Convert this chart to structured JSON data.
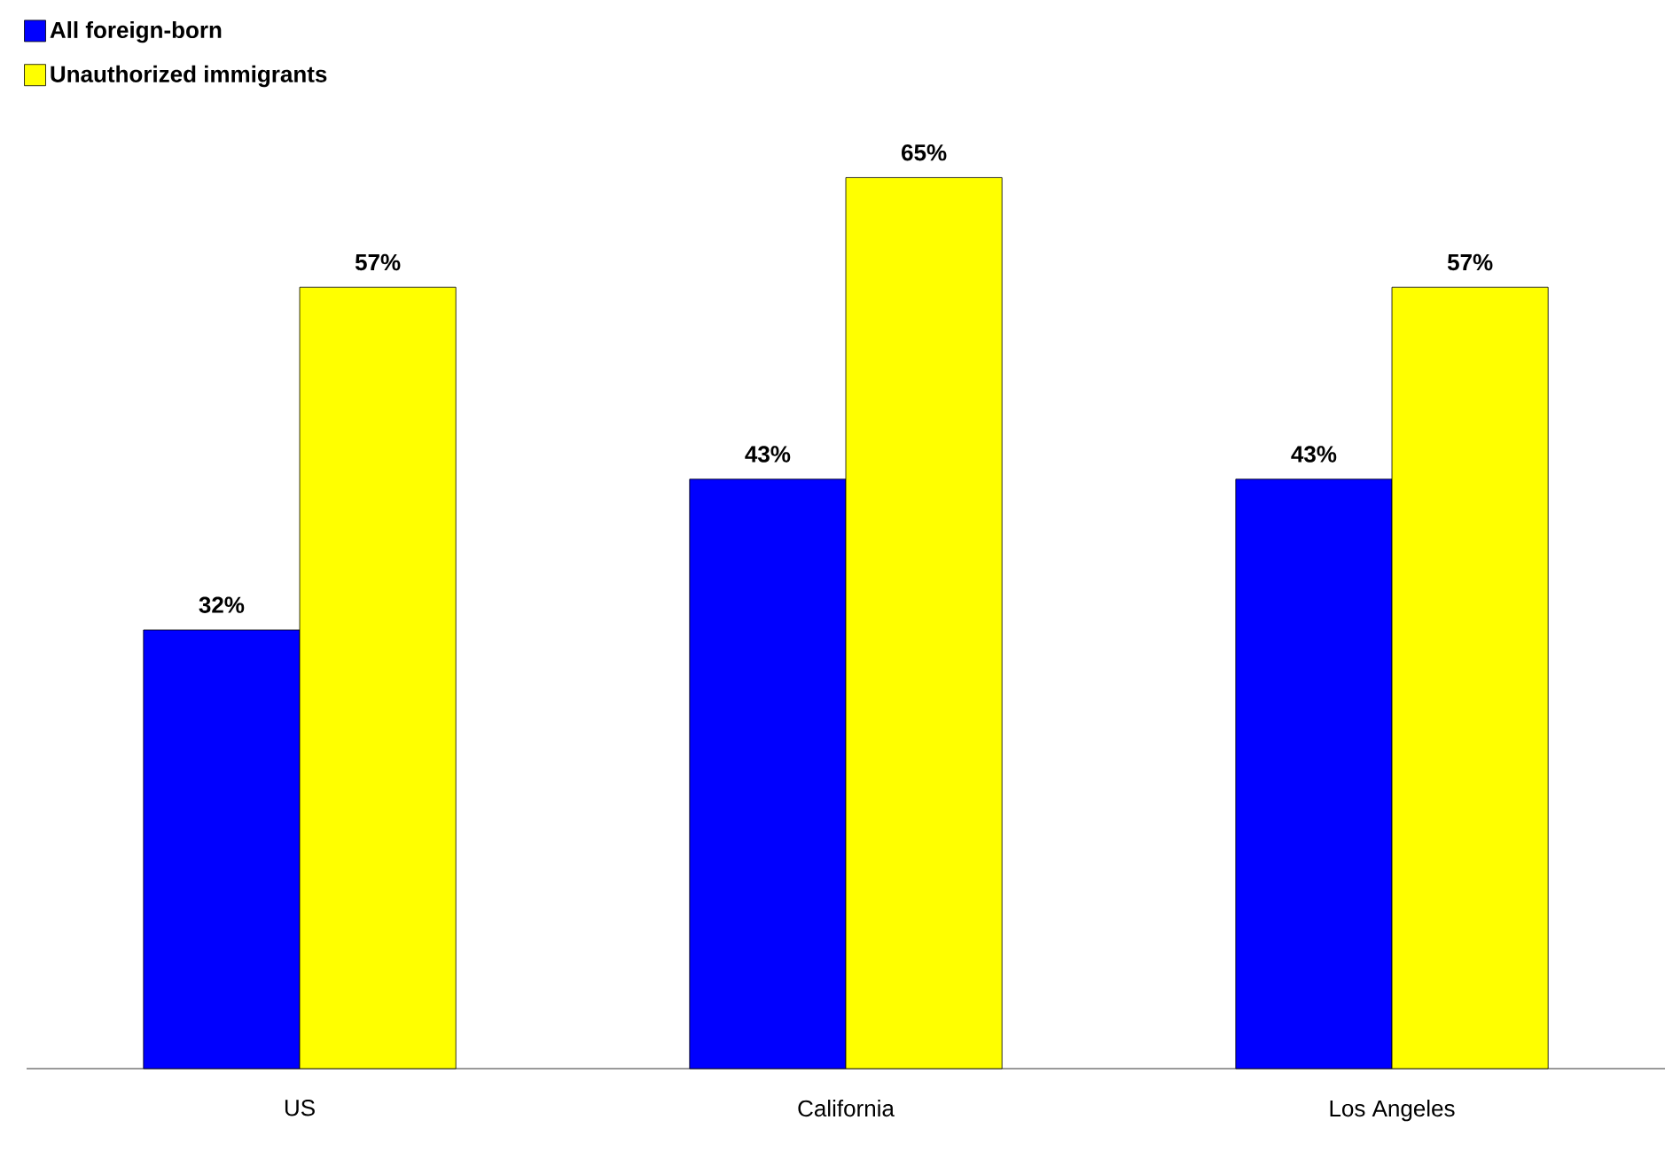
{
  "chart_data": {
    "type": "bar",
    "categories": [
      "US",
      "California",
      "Los Angeles"
    ],
    "series": [
      {
        "name": "All foreign-born",
        "color": "#0000ff",
        "values": [
          32,
          43,
          43
        ],
        "value_labels": [
          "32%",
          "43%",
          "43%"
        ]
      },
      {
        "name": "Unauthorized immigrants",
        "color": "#ffff00",
        "values": [
          57,
          65,
          57
        ],
        "value_labels": [
          "57%",
          "65%",
          "57%"
        ]
      }
    ],
    "legend": "top left"
  }
}
